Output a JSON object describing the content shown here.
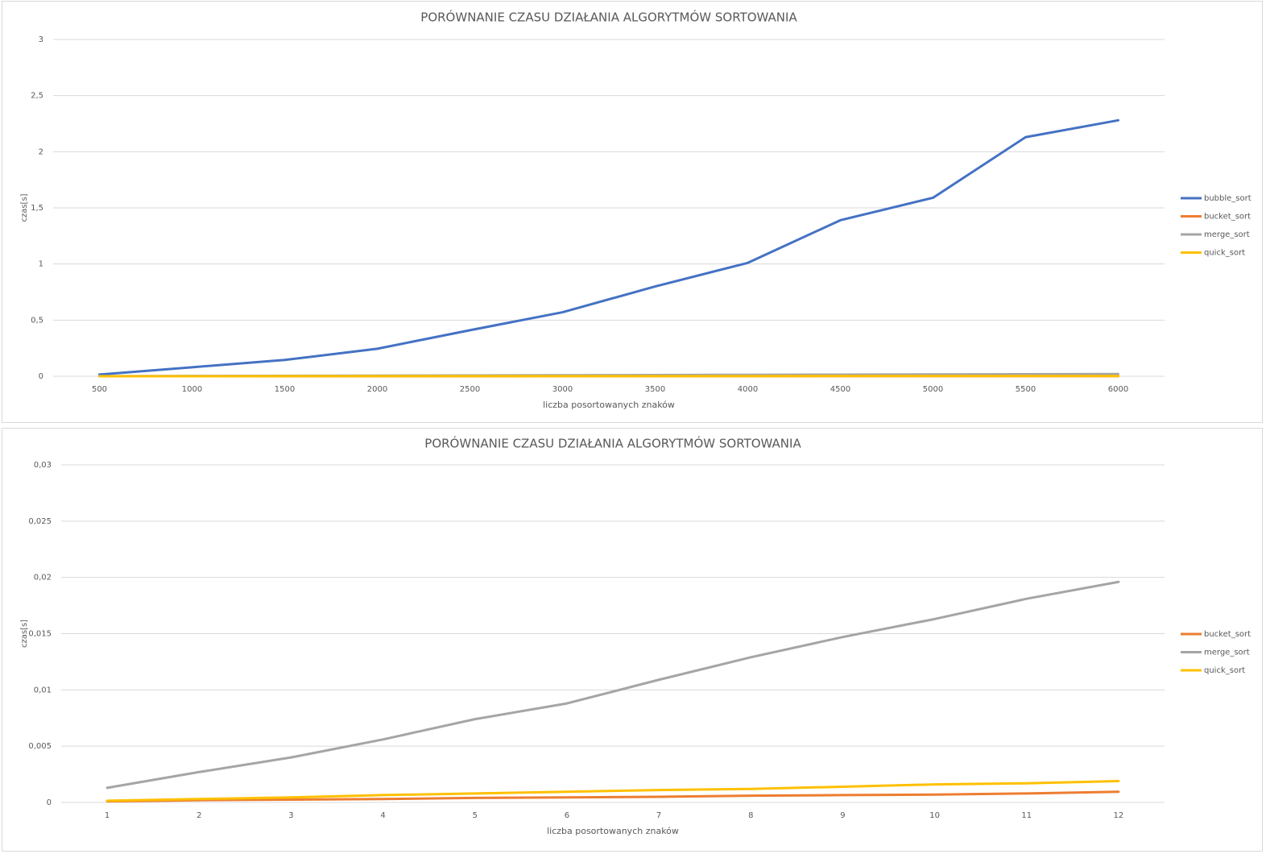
{
  "chart_data": [
    {
      "type": "line",
      "title": "PORÓWNANIE CZASU DZIAŁANIA ALGORYTMÓW SORTOWANIA",
      "x_label": "liczba posortowanych znaków",
      "y_label": "czas[s]",
      "categories": [
        500,
        1000,
        1500,
        2000,
        2500,
        3000,
        3500,
        4000,
        4500,
        5000,
        5500,
        6000
      ],
      "series": [
        {
          "name": "bubble_sort",
          "color": "#4472c4",
          "values": [
            0.015,
            0.08,
            0.145,
            0.245,
            0.41,
            0.57,
            0.8,
            1.01,
            1.39,
            1.59,
            2.13,
            2.28
          ]
        },
        {
          "name": "bucket_sort",
          "color": "#ed7d31",
          "values": [
            0.0001,
            0.0002,
            0.00025,
            0.0003,
            0.0004,
            0.00045,
            0.0005,
            0.0006,
            0.00065,
            0.0007,
            0.0008,
            0.00095
          ]
        },
        {
          "name": "merge_sort",
          "color": "#a5a5a5",
          "values": [
            0.0013,
            0.0027,
            0.004,
            0.0056,
            0.0074,
            0.0088,
            0.0109,
            0.0129,
            0.0147,
            0.0163,
            0.0181,
            0.0196
          ]
        },
        {
          "name": "quick_sort",
          "color": "#ffc000",
          "values": [
            0.00015,
            0.0003,
            0.00045,
            0.00065,
            0.0008,
            0.00095,
            0.0011,
            0.0012,
            0.0014,
            0.0016,
            0.0017,
            0.0019
          ]
        }
      ],
      "ylim": [
        0,
        3
      ],
      "yticks": [
        0,
        {
          "value": 0.5,
          "label": "0,5"
        },
        1,
        {
          "value": 1.5,
          "label": "1,5"
        },
        2,
        {
          "value": 2.5,
          "label": "2,5"
        },
        3
      ],
      "grid": true,
      "legend": "right"
    },
    {
      "type": "line",
      "title": "PORÓWNANIE CZASU DZIAŁANIA ALGORYTMÓW SORTOWANIA",
      "x_label": "liczba posortowanych znaków",
      "y_label": "czas[s]",
      "categories": [
        1,
        2,
        3,
        4,
        5,
        6,
        7,
        8,
        9,
        10,
        11,
        12
      ],
      "series": [
        {
          "name": "bucket_sort",
          "color": "#ed7d31",
          "values": [
            0.0001,
            0.0002,
            0.00025,
            0.0003,
            0.0004,
            0.00045,
            0.0005,
            0.0006,
            0.00065,
            0.0007,
            0.0008,
            0.00095
          ]
        },
        {
          "name": "merge_sort",
          "color": "#a5a5a5",
          "values": [
            0.0013,
            0.0027,
            0.004,
            0.0056,
            0.0074,
            0.0088,
            0.0109,
            0.0129,
            0.0147,
            0.0163,
            0.0181,
            0.0196
          ]
        },
        {
          "name": "quick_sort",
          "color": "#ffc000",
          "values": [
            0.00015,
            0.0003,
            0.00045,
            0.00065,
            0.0008,
            0.00095,
            0.0011,
            0.0012,
            0.0014,
            0.0016,
            0.0017,
            0.0019
          ]
        }
      ],
      "ylim": [
        0,
        0.03
      ],
      "yticks": [
        0,
        {
          "value": 0.005,
          "label": "0,005"
        },
        {
          "value": 0.01,
          "label": "0,01"
        },
        {
          "value": 0.015,
          "label": "0,015"
        },
        {
          "value": 0.02,
          "label": "0,02"
        },
        {
          "value": 0.025,
          "label": "0,025"
        },
        {
          "value": 0.03,
          "label": "0,03"
        }
      ],
      "grid": true,
      "legend": "right"
    }
  ]
}
